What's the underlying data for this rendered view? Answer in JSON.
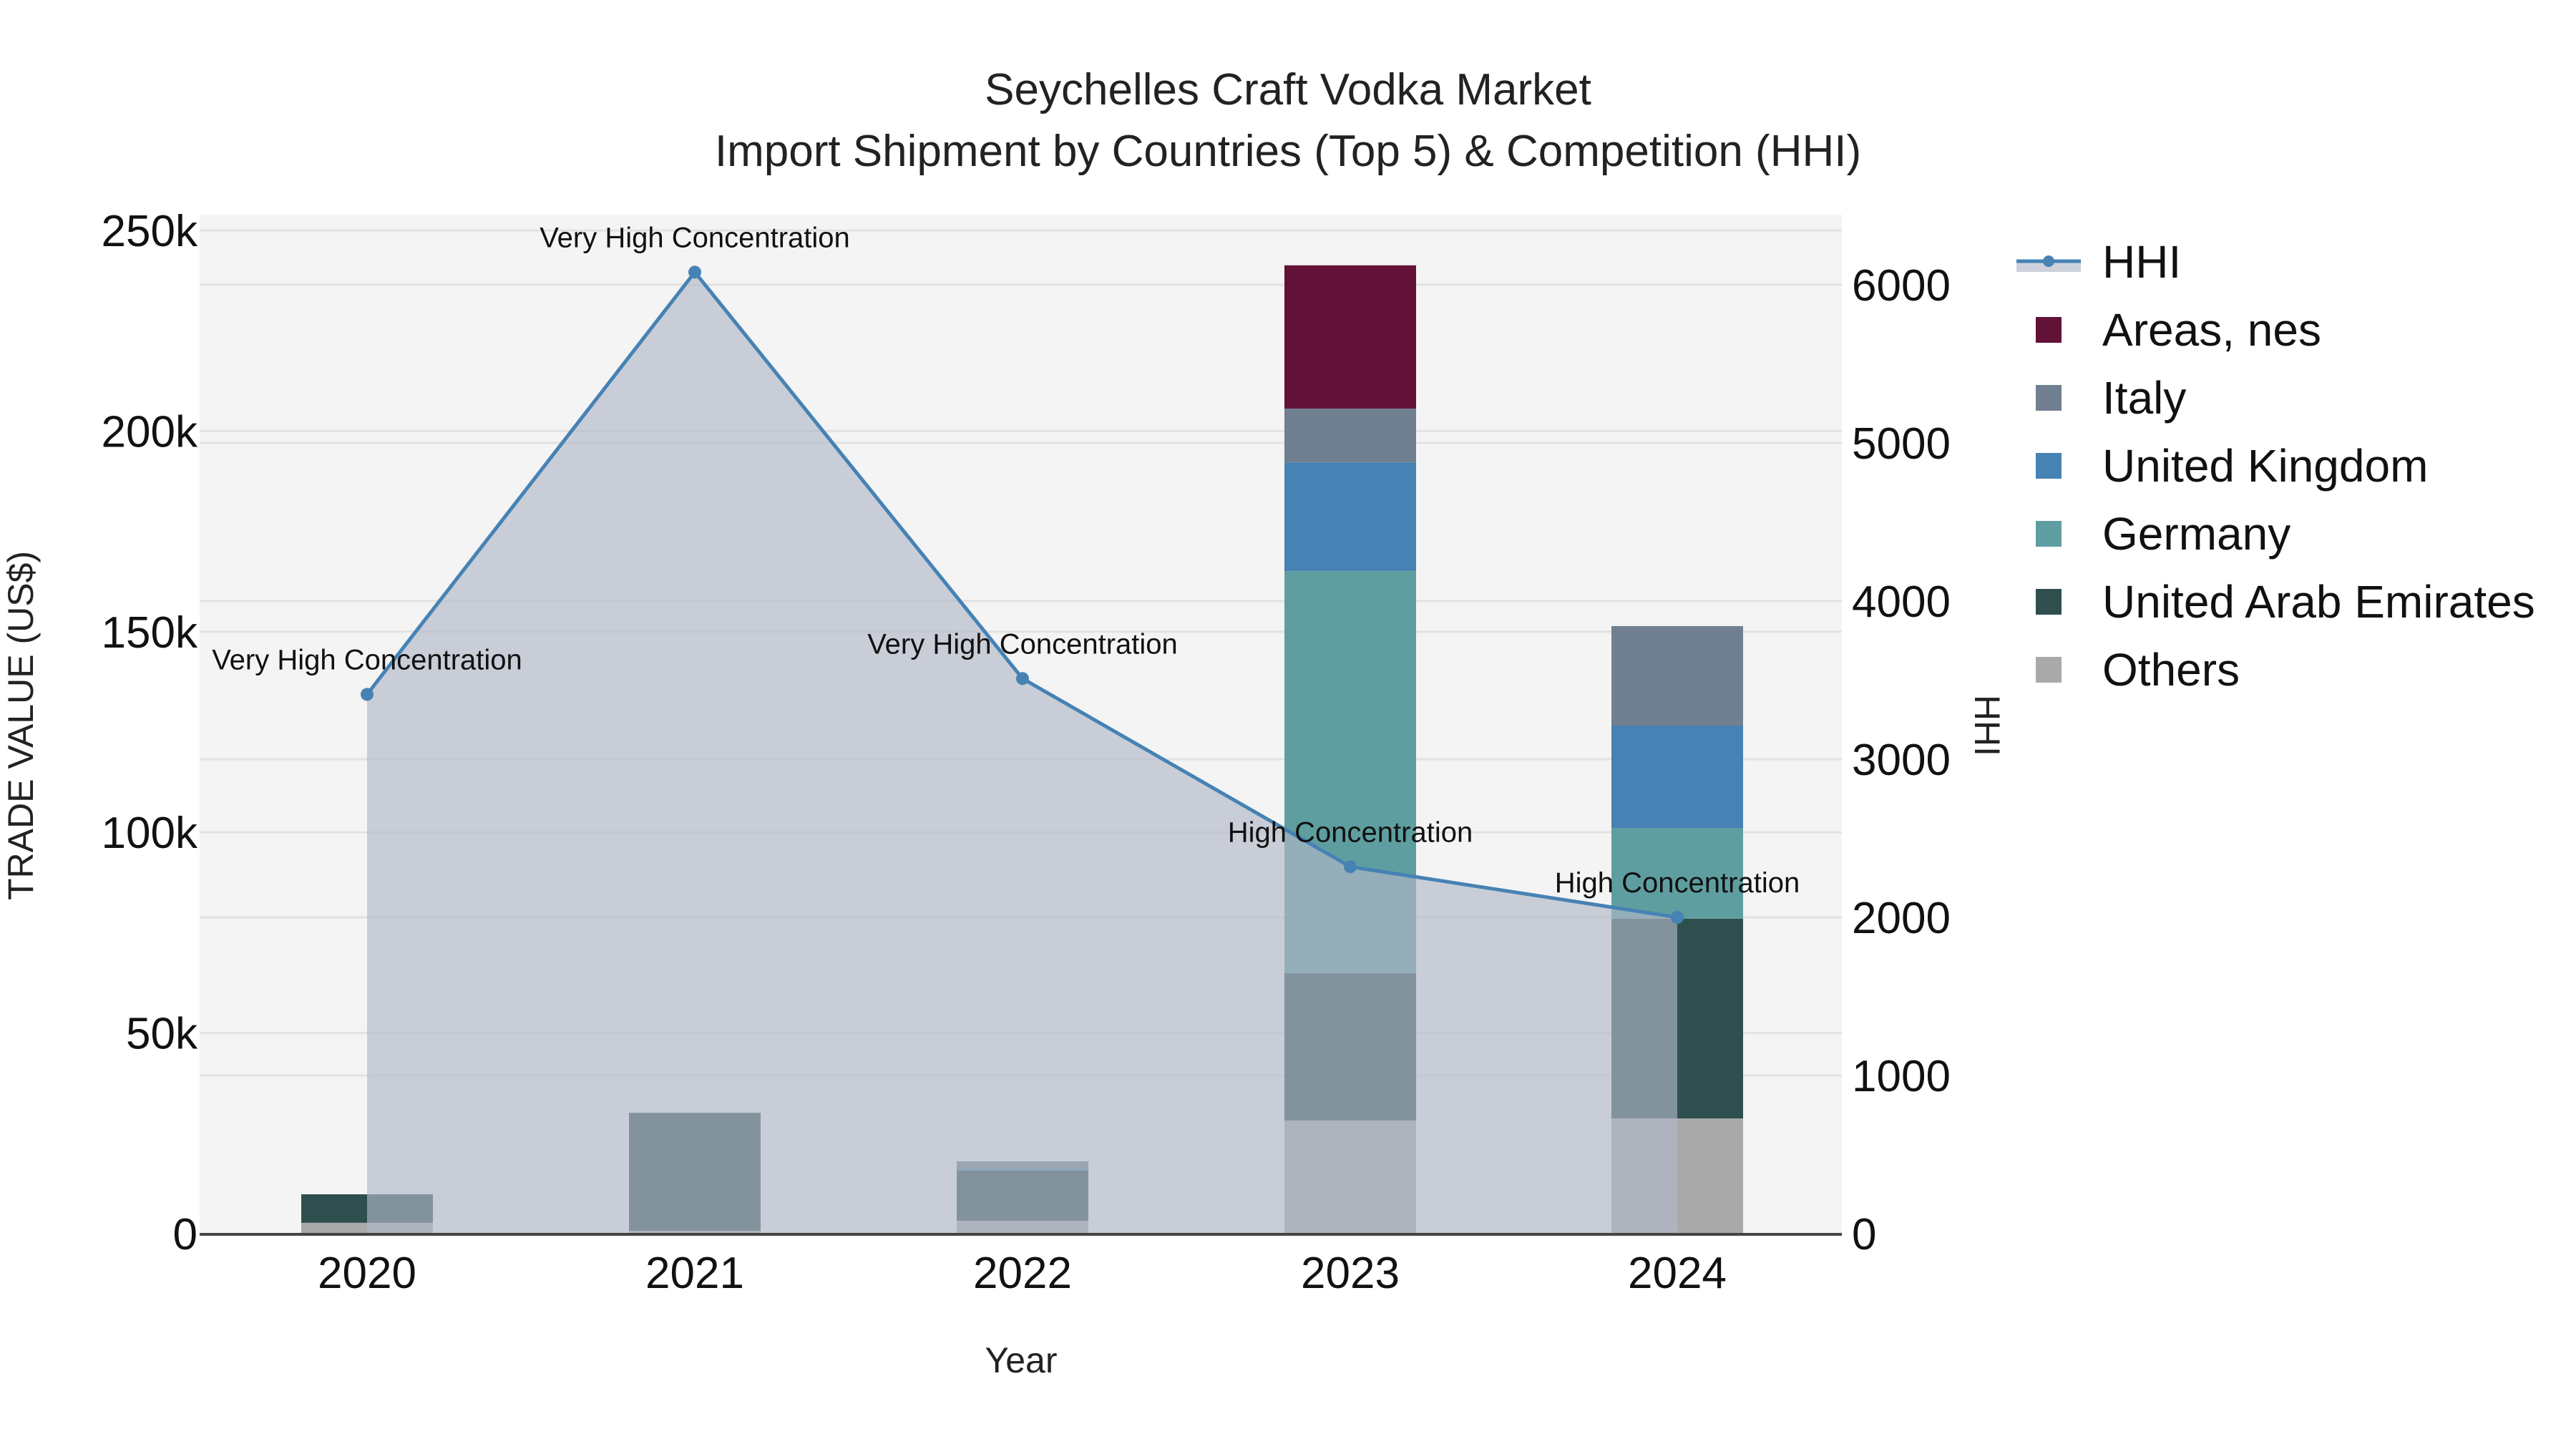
{
  "title": {
    "line1": "Seychelles Craft Vodka Market",
    "line2": "Import Shipment by Countries (Top 5) & Competition (HHI)"
  },
  "axes": {
    "x_title": "Year",
    "y_left_title": "TRADE VALUE (US$)",
    "y_right_title": "HHI",
    "y_left_ticks": [
      "0",
      "50k",
      "100k",
      "150k",
      "200k",
      "250k"
    ],
    "y_right_ticks": [
      "0",
      "1000",
      "2000",
      "3000",
      "4000",
      "5000",
      "6000"
    ]
  },
  "legend": [
    {
      "label": "HHI",
      "type": "line",
      "color": "#4682B4"
    },
    {
      "label": "Areas, nes",
      "type": "box",
      "color": "#631237"
    },
    {
      "label": "Italy",
      "type": "box",
      "color": "#708090"
    },
    {
      "label": "United Kingdom",
      "type": "box",
      "color": "#4682B4"
    },
    {
      "label": "Germany",
      "type": "box",
      "color": "#5F9EA0"
    },
    {
      "label": "United Arab Emirates",
      "type": "box",
      "color": "#2F4F4F"
    },
    {
      "label": "Others",
      "type": "box",
      "color": "#A9A9A9"
    }
  ],
  "colors": {
    "plot_bg": "#F4F4F4",
    "grid": "#E2E2E2",
    "hhi_line": "#4682B4",
    "hhi_fill": "rgba(176,185,200,0.65)",
    "axis_line": "#444444"
  },
  "chart_data": {
    "type": "bar",
    "stacked": true,
    "title": "Seychelles Craft Vodka Market — Import Shipment by Countries (Top 5) & Competition (HHI)",
    "xlabel": "Year",
    "ylabel": "TRADE VALUE (US$)",
    "y2label": "HHI",
    "ylim": [
      0,
      250000
    ],
    "y2lim": [
      0,
      6000
    ],
    "grid": true,
    "legend_position": "right",
    "categories": [
      "2020",
      "2021",
      "2022",
      "2023",
      "2024"
    ],
    "series": [
      {
        "name": "Others",
        "color": "#A9A9A9",
        "values": [
          2700,
          700,
          3200,
          28200,
          28700
        ]
      },
      {
        "name": "United Arab Emirates",
        "color": "#2F4F4F",
        "values": [
          7100,
          29400,
          12500,
          36700,
          49800
        ]
      },
      {
        "name": "Germany",
        "color": "#5F9EA0",
        "values": [
          0,
          0,
          0,
          100200,
          22600
        ]
      },
      {
        "name": "United Kingdom",
        "color": "#4682B4",
        "values": [
          0,
          0,
          500,
          27100,
          25500
        ]
      },
      {
        "name": "Italy",
        "color": "#708090",
        "values": [
          0,
          0,
          1800,
          13400,
          24800
        ]
      },
      {
        "name": "Areas, nes",
        "color": "#631237",
        "values": [
          0,
          0,
          0,
          35700,
          0
        ]
      }
    ],
    "line_series": {
      "name": "HHI",
      "axis": "right",
      "type": "area-line",
      "color": "#4682B4",
      "values": [
        3410,
        6080,
        3510,
        2320,
        2000
      ],
      "annotations": [
        "Very High Concentration",
        "Very High Concentration",
        "Very High Concentration",
        "High Concentration",
        "High Concentration"
      ]
    }
  }
}
